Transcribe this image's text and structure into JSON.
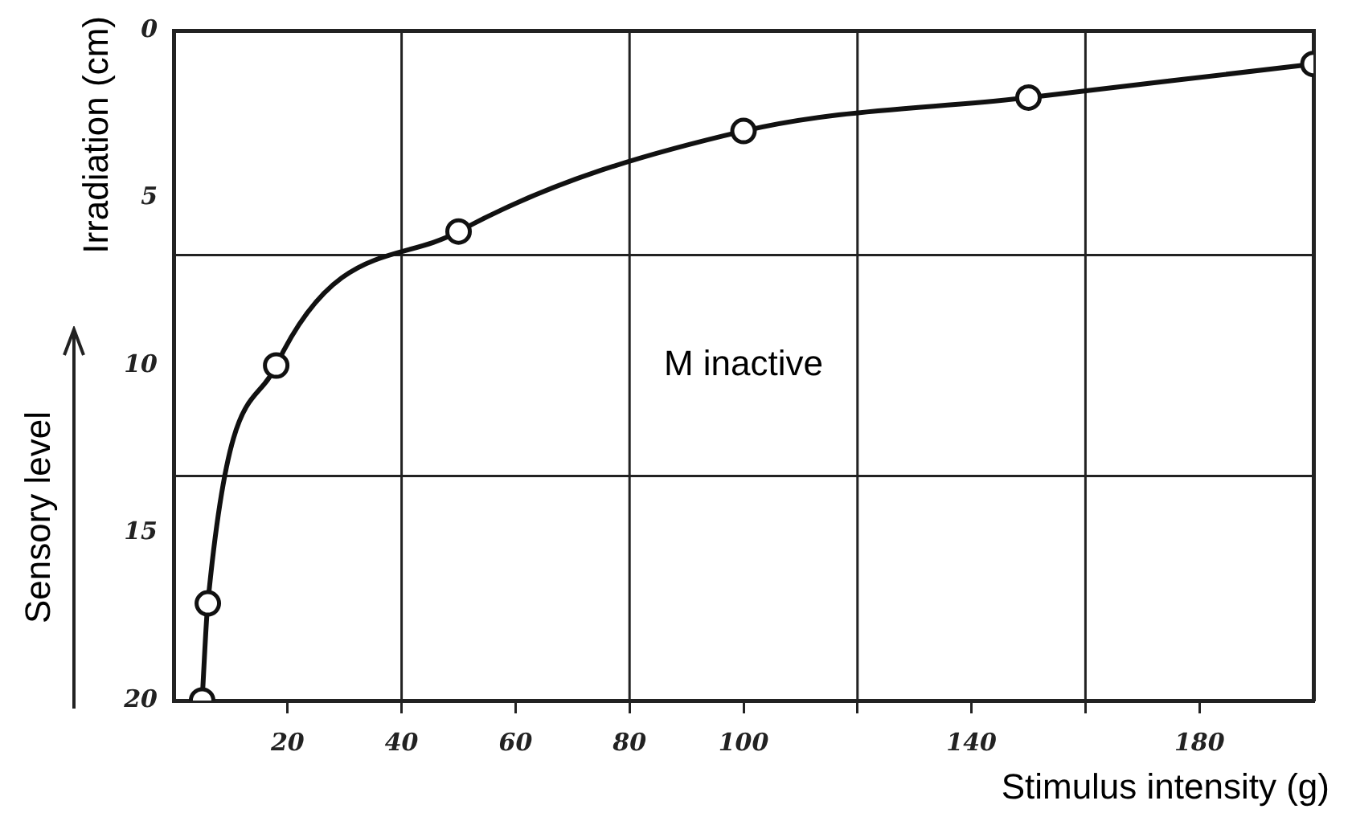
{
  "chart_data": {
    "type": "line",
    "xlabel": "Stimulus intensity (g)",
    "ylabel": "Irradiation (cm)",
    "annotations": [
      "M inactive",
      "Sensory level"
    ],
    "x": [
      5,
      6,
      18,
      50,
      100,
      150,
      200
    ],
    "series": [
      {
        "color": "#111111",
        "values": [
          20,
          17.1,
          10,
          6,
          3,
          2,
          1
        ]
      }
    ],
    "xlim": [
      0,
      200
    ],
    "xticks": [
      20,
      40,
      60,
      80,
      100,
      {
        "value": 120,
        "label": null
      },
      140,
      {
        "value": 160,
        "label": null
      },
      180
    ],
    "ylim": [
      20,
      0
    ],
    "yticks": [
      0,
      5,
      10,
      15,
      20
    ],
    "ref_lines": [
      {
        "axis": "x",
        "value": 40
      },
      {
        "axis": "x",
        "value": 80
      },
      {
        "axis": "x",
        "value": 120
      },
      {
        "axis": "x",
        "value": 160
      },
      {
        "axis": "y",
        "value": 6.7
      },
      {
        "axis": "y",
        "value": 13.3
      }
    ],
    "grid": false,
    "legend": false,
    "marker": "circle",
    "line_style": "solid"
  }
}
